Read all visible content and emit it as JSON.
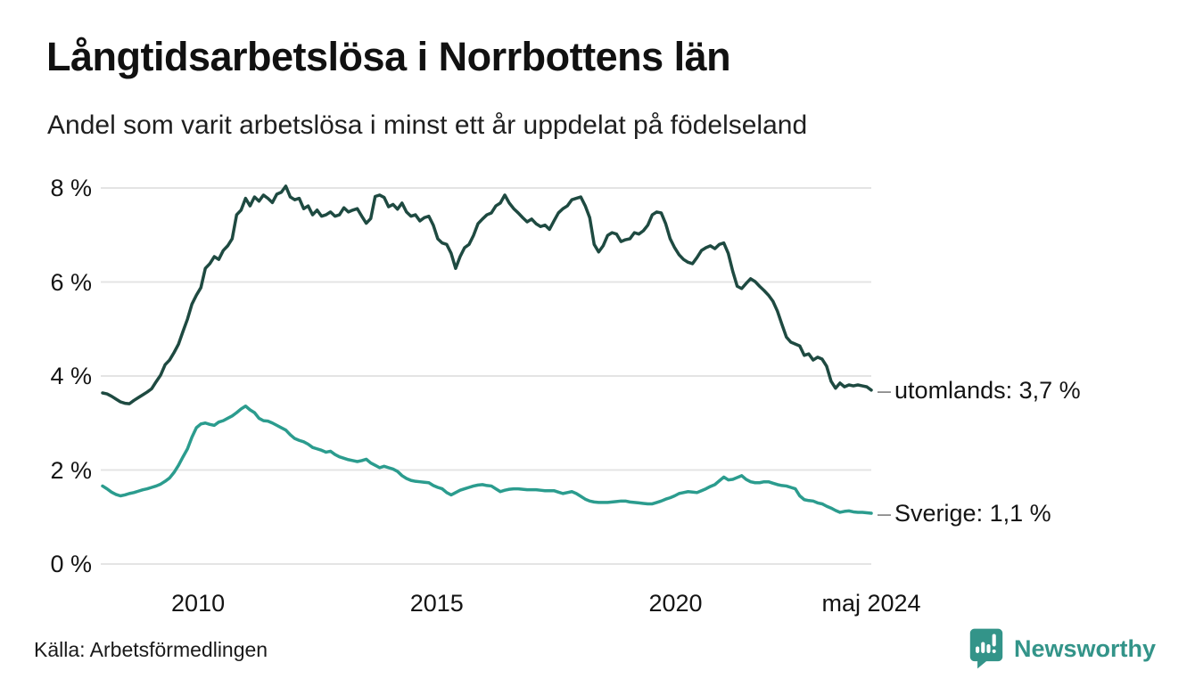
{
  "chart_data": {
    "type": "line",
    "title": "Långtidsarbetslösa i Norrbottens län",
    "subtitle": "Andel som varit arbetslösa i minst ett år uppdelat på födelseland",
    "source": "Källa: Arbetsförmedlingen",
    "unit": "%",
    "legend": "end-of-line labels",
    "grid": "horizontal only",
    "grid_color": "#e4e4e4",
    "annotation_dash_color": "#8c8c8c",
    "y_axis": {
      "range": [
        0,
        8.2
      ],
      "ticks": [
        {
          "value": 8,
          "label": "8 %"
        },
        {
          "value": 6,
          "label": "6 %"
        },
        {
          "value": 4,
          "label": "4 %"
        },
        {
          "value": 2,
          "label": "2 %"
        },
        {
          "value": 0,
          "label": "0 %"
        }
      ]
    },
    "x_axis": {
      "start_year": 2008.0,
      "step_year": 0.0936,
      "end_label": "maj 2024",
      "ticks": [
        {
          "label": "2010",
          "year": 2010
        },
        {
          "label": "2015",
          "year": 2015
        },
        {
          "label": "2020",
          "year": 2020
        },
        {
          "label": "maj 2024",
          "year": 2024.1
        }
      ]
    },
    "series": [
      {
        "name": "utomlands",
        "color": "#1e4a41",
        "end_label": "utomlands: 3,7 %",
        "last_value": 3.7,
        "values": [
          3.64,
          3.62,
          3.57,
          3.51,
          3.45,
          3.42,
          3.41,
          3.48,
          3.54,
          3.6,
          3.66,
          3.73,
          3.88,
          4.02,
          4.24,
          4.34,
          4.5,
          4.68,
          4.95,
          5.21,
          5.53,
          5.72,
          5.88,
          6.29,
          6.39,
          6.54,
          6.48,
          6.67,
          6.77,
          6.92,
          7.43,
          7.53,
          7.78,
          7.62,
          7.81,
          7.72,
          7.85,
          7.78,
          7.69,
          7.87,
          7.91,
          8.04,
          7.81,
          7.75,
          7.78,
          7.56,
          7.62,
          7.43,
          7.53,
          7.4,
          7.43,
          7.49,
          7.4,
          7.43,
          7.58,
          7.49,
          7.53,
          7.56,
          7.4,
          7.25,
          7.35,
          7.82,
          7.85,
          7.8,
          7.6,
          7.65,
          7.55,
          7.68,
          7.49,
          7.4,
          7.43,
          7.3,
          7.37,
          7.4,
          7.21,
          6.92,
          6.83,
          6.8,
          6.61,
          6.29,
          6.54,
          6.73,
          6.8,
          6.99,
          7.24,
          7.34,
          7.43,
          7.47,
          7.62,
          7.68,
          7.85,
          7.68,
          7.56,
          7.47,
          7.37,
          7.28,
          7.34,
          7.24,
          7.18,
          7.21,
          7.12,
          7.3,
          7.47,
          7.56,
          7.62,
          7.75,
          7.78,
          7.81,
          7.62,
          7.37,
          6.8,
          6.64,
          6.77,
          6.99,
          7.05,
          7.02,
          6.86,
          6.9,
          6.92,
          7.05,
          7.02,
          7.09,
          7.21,
          7.43,
          7.49,
          7.47,
          7.24,
          6.92,
          6.73,
          6.58,
          6.48,
          6.42,
          6.39,
          6.52,
          6.67,
          6.73,
          6.77,
          6.71,
          6.8,
          6.83,
          6.61,
          6.23,
          5.91,
          5.86,
          5.97,
          6.07,
          6.01,
          5.91,
          5.82,
          5.72,
          5.59,
          5.38,
          5.1,
          4.83,
          4.72,
          4.68,
          4.64,
          4.44,
          4.47,
          4.34,
          4.4,
          4.36,
          4.21,
          3.89,
          3.74,
          3.85,
          3.77,
          3.81,
          3.79,
          3.81,
          3.79,
          3.77,
          3.7
        ]
      },
      {
        "name": "Sverige",
        "color": "#2b9c8e",
        "end_label": "Sverige: 1,1 %",
        "last_value": 1.1,
        "values": [
          1.66,
          1.6,
          1.53,
          1.48,
          1.45,
          1.47,
          1.5,
          1.52,
          1.55,
          1.58,
          1.6,
          1.63,
          1.66,
          1.7,
          1.76,
          1.83,
          1.95,
          2.1,
          2.28,
          2.45,
          2.7,
          2.9,
          2.98,
          3.0,
          2.97,
          2.95,
          3.02,
          3.05,
          3.1,
          3.15,
          3.22,
          3.3,
          3.36,
          3.28,
          3.22,
          3.1,
          3.05,
          3.04,
          3.0,
          2.95,
          2.9,
          2.85,
          2.75,
          2.67,
          2.63,
          2.6,
          2.55,
          2.48,
          2.45,
          2.42,
          2.38,
          2.4,
          2.33,
          2.28,
          2.25,
          2.22,
          2.2,
          2.18,
          2.2,
          2.23,
          2.15,
          2.1,
          2.05,
          2.08,
          2.05,
          2.02,
          1.97,
          1.88,
          1.82,
          1.78,
          1.76,
          1.75,
          1.74,
          1.73,
          1.67,
          1.63,
          1.6,
          1.52,
          1.47,
          1.52,
          1.57,
          1.6,
          1.63,
          1.66,
          1.68,
          1.69,
          1.67,
          1.66,
          1.6,
          1.54,
          1.57,
          1.59,
          1.6,
          1.6,
          1.59,
          1.58,
          1.58,
          1.58,
          1.57,
          1.56,
          1.56,
          1.56,
          1.53,
          1.5,
          1.52,
          1.54,
          1.5,
          1.44,
          1.38,
          1.34,
          1.32,
          1.31,
          1.31,
          1.31,
          1.32,
          1.33,
          1.34,
          1.34,
          1.32,
          1.31,
          1.3,
          1.29,
          1.28,
          1.28,
          1.31,
          1.34,
          1.38,
          1.41,
          1.45,
          1.5,
          1.52,
          1.54,
          1.53,
          1.52,
          1.56,
          1.6,
          1.65,
          1.69,
          1.77,
          1.85,
          1.79,
          1.8,
          1.84,
          1.88,
          1.8,
          1.75,
          1.73,
          1.73,
          1.75,
          1.75,
          1.72,
          1.69,
          1.67,
          1.66,
          1.63,
          1.6,
          1.45,
          1.37,
          1.35,
          1.34,
          1.3,
          1.28,
          1.23,
          1.19,
          1.14,
          1.1,
          1.12,
          1.13,
          1.11,
          1.1,
          1.1,
          1.09,
          1.08
        ]
      }
    ]
  },
  "footer": {
    "brand_name": "Newsworthy",
    "brand_color": "#339489"
  }
}
